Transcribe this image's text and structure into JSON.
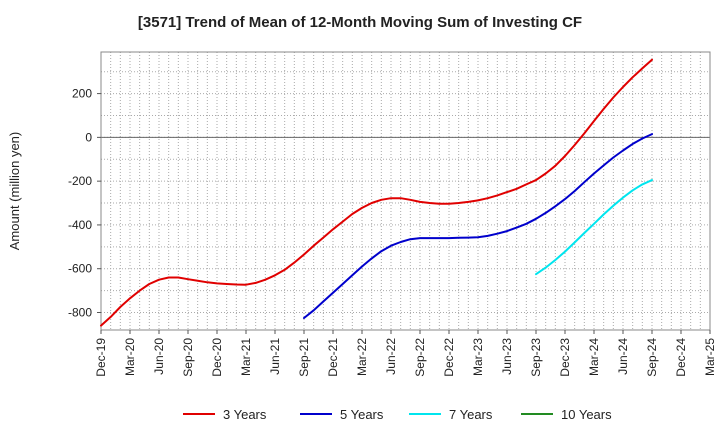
{
  "chart_data": {
    "type": "line",
    "title": "[3571]  Trend of Mean of 12-Month Moving Sum of Investing CF",
    "ylabel": "Amount (million yen)",
    "xlabel": "",
    "ylim": [
      -880,
      390
    ],
    "y_ticks": [
      -800,
      -600,
      -400,
      -200,
      0,
      200
    ],
    "x_start": "2019-12",
    "x_end": "2025-03",
    "x_tick_labels": [
      "Dec-19",
      "Mar-20",
      "Jun-20",
      "Sep-20",
      "Dec-20",
      "Mar-21",
      "Jun-21",
      "Sep-21",
      "Dec-21",
      "Mar-22",
      "Jun-22",
      "Sep-22",
      "Dec-22",
      "Mar-23",
      "Jun-23",
      "Sep-23",
      "Dec-23",
      "Mar-24",
      "Jun-24",
      "Sep-24",
      "Dec-24",
      "Mar-25"
    ],
    "grid": true,
    "legend_position": "bottom",
    "series": [
      {
        "name": "3 Years",
        "color": "#e00000",
        "x": [
          "2019-12",
          "2020-01",
          "2020-02",
          "2020-03",
          "2020-04",
          "2020-05",
          "2020-06",
          "2020-07",
          "2020-08",
          "2020-09",
          "2020-10",
          "2020-11",
          "2020-12",
          "2021-01",
          "2021-02",
          "2021-03",
          "2021-04",
          "2021-05",
          "2021-06",
          "2021-07",
          "2021-08",
          "2021-09",
          "2021-10",
          "2021-11",
          "2021-12",
          "2022-01",
          "2022-02",
          "2022-03",
          "2022-04",
          "2022-05",
          "2022-06",
          "2022-07",
          "2022-08",
          "2022-09",
          "2022-10",
          "2022-11",
          "2022-12",
          "2023-01",
          "2023-02",
          "2023-03",
          "2023-04",
          "2023-05",
          "2023-06",
          "2023-07",
          "2023-08",
          "2023-09",
          "2023-10",
          "2023-11",
          "2023-12",
          "2024-01",
          "2024-02",
          "2024-03",
          "2024-04",
          "2024-05",
          "2024-06",
          "2024-07",
          "2024-08",
          "2024-09"
        ],
        "values": [
          -860,
          -820,
          -775,
          -735,
          -700,
          -670,
          -650,
          -640,
          -640,
          -648,
          -655,
          -662,
          -667,
          -670,
          -672,
          -673,
          -665,
          -650,
          -630,
          -605,
          -572,
          -535,
          -495,
          -458,
          -420,
          -385,
          -350,
          -322,
          -300,
          -285,
          -278,
          -278,
          -285,
          -295,
          -300,
          -303,
          -303,
          -300,
          -295,
          -288,
          -278,
          -265,
          -250,
          -235,
          -215,
          -195,
          -165,
          -130,
          -85,
          -35,
          18,
          75,
          130,
          182,
          230,
          275,
          315,
          355
        ]
      },
      {
        "name": "5 Years",
        "color": "#0000cc",
        "x": [
          "2021-09",
          "2021-10",
          "2021-11",
          "2021-12",
          "2022-01",
          "2022-02",
          "2022-03",
          "2022-04",
          "2022-05",
          "2022-06",
          "2022-07",
          "2022-08",
          "2022-09",
          "2022-10",
          "2022-11",
          "2022-12",
          "2023-01",
          "2023-02",
          "2023-03",
          "2023-04",
          "2023-05",
          "2023-06",
          "2023-07",
          "2023-08",
          "2023-09",
          "2023-10",
          "2023-11",
          "2023-12",
          "2024-01",
          "2024-02",
          "2024-03",
          "2024-04",
          "2024-05",
          "2024-06",
          "2024-07",
          "2024-08",
          "2024-09"
        ],
        "values": [
          -825,
          -790,
          -750,
          -710,
          -670,
          -630,
          -590,
          -553,
          -520,
          -495,
          -478,
          -465,
          -460,
          -460,
          -460,
          -460,
          -459,
          -458,
          -456,
          -450,
          -440,
          -428,
          -412,
          -395,
          -372,
          -345,
          -315,
          -282,
          -245,
          -205,
          -165,
          -128,
          -92,
          -60,
          -30,
          -5,
          15
        ]
      },
      {
        "name": "7 Years",
        "color": "#00e5ee",
        "x": [
          "2023-09",
          "2023-10",
          "2023-11",
          "2023-12",
          "2024-01",
          "2024-02",
          "2024-03",
          "2024-04",
          "2024-05",
          "2024-06",
          "2024-07",
          "2024-08",
          "2024-09"
        ],
        "values": [
          -625,
          -595,
          -560,
          -522,
          -480,
          -437,
          -395,
          -352,
          -312,
          -275,
          -242,
          -215,
          -195
        ]
      },
      {
        "name": "10 Years",
        "color": "#228b22",
        "x": [],
        "values": []
      }
    ]
  }
}
